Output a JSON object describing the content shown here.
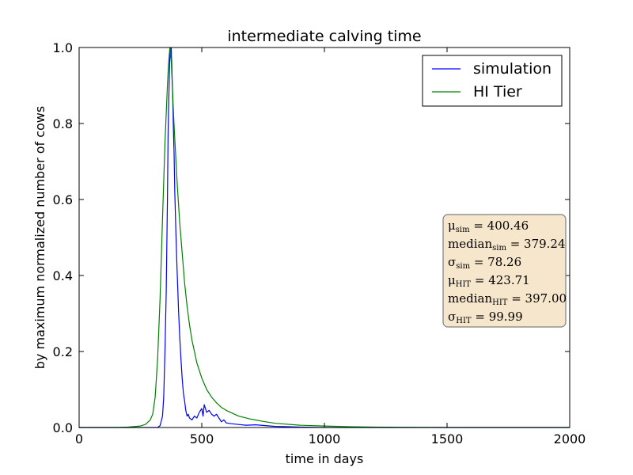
{
  "chart_data": {
    "type": "line",
    "title": "intermediate calving time",
    "xlabel": "time in days",
    "ylabel": "by maximum normalized number of cows",
    "xlim": [
      0,
      2000
    ],
    "ylim": [
      0.0,
      1.0
    ],
    "xticks": [
      0,
      500,
      1000,
      1500,
      2000
    ],
    "xtick_labels": [
      "0",
      "500",
      "1000",
      "1500",
      "2000"
    ],
    "yticks": [
      0.0,
      0.2,
      0.4,
      0.6,
      0.8,
      1.0
    ],
    "ytick_labels": [
      "0.0",
      "0.2",
      "0.4",
      "0.6",
      "0.8",
      "1.0"
    ],
    "grid": false,
    "legend_position": "top-right",
    "series": [
      {
        "name": "simulation",
        "color": "#0000ff",
        "x": [
          0,
          320,
          330,
          340,
          345,
          350,
          355,
          360,
          363,
          366,
          369,
          372,
          375,
          378,
          381,
          384,
          387,
          390,
          393,
          396,
          399,
          402,
          405,
          410,
          415,
          420,
          425,
          430,
          435,
          440,
          445,
          450,
          460,
          470,
          480,
          490,
          500,
          505,
          510,
          520,
          530,
          540,
          550,
          560,
          570,
          580,
          590,
          600,
          620,
          650,
          680,
          720,
          760,
          800,
          850,
          900,
          1000,
          1200,
          1500,
          2000
        ],
        "y": [
          0.0,
          0.0,
          0.005,
          0.03,
          0.08,
          0.2,
          0.36,
          0.6,
          0.78,
          0.88,
          0.96,
          0.99,
          1.0,
          0.95,
          0.88,
          0.8,
          0.72,
          0.62,
          0.55,
          0.48,
          0.42,
          0.37,
          0.31,
          0.24,
          0.18,
          0.13,
          0.09,
          0.07,
          0.045,
          0.03,
          0.035,
          0.025,
          0.02,
          0.03,
          0.025,
          0.04,
          0.05,
          0.03,
          0.06,
          0.04,
          0.045,
          0.035,
          0.03,
          0.035,
          0.025,
          0.015,
          0.02,
          0.012,
          0.01,
          0.008,
          0.006,
          0.007,
          0.005,
          0.003,
          0.002,
          0.001,
          0.0,
          0.0,
          0.0,
          0.0
        ]
      },
      {
        "name": "HI Tier",
        "color": "#008000",
        "x": [
          0,
          150,
          200,
          250,
          270,
          290,
          300,
          310,
          320,
          330,
          340,
          350,
          360,
          365,
          370,
          375,
          380,
          385,
          390,
          395,
          400,
          410,
          420,
          430,
          440,
          450,
          460,
          480,
          500,
          520,
          540,
          560,
          580,
          600,
          650,
          700,
          750,
          800,
          900,
          1000,
          1100,
          1200,
          1500,
          2000
        ],
        "y": [
          0.0,
          0.0,
          0.001,
          0.004,
          0.008,
          0.02,
          0.035,
          0.08,
          0.18,
          0.34,
          0.55,
          0.75,
          0.9,
          0.96,
          1.0,
          0.97,
          0.9,
          0.82,
          0.76,
          0.7,
          0.64,
          0.54,
          0.46,
          0.38,
          0.32,
          0.27,
          0.23,
          0.17,
          0.13,
          0.1,
          0.08,
          0.065,
          0.053,
          0.045,
          0.03,
          0.022,
          0.016,
          0.011,
          0.006,
          0.004,
          0.002,
          0.001,
          0.0,
          0.0
        ]
      }
    ],
    "stats_box": {
      "background": "#f5e6cc",
      "lines": [
        {
          "main": "μ",
          "sub": "sim",
          "rest": " = 400.46"
        },
        {
          "main": "median",
          "sub": "sim",
          "rest": " = 379.24"
        },
        {
          "main": "σ",
          "sub": "sim",
          "rest": " = 78.26"
        },
        {
          "main": "μ",
          "sub": "HIT",
          "rest": " = 423.71"
        },
        {
          "main": "median",
          "sub": "HIT",
          "rest": " = 397.00"
        },
        {
          "main": "σ",
          "sub": "HIT",
          "rest": " = 99.99"
        }
      ]
    }
  }
}
